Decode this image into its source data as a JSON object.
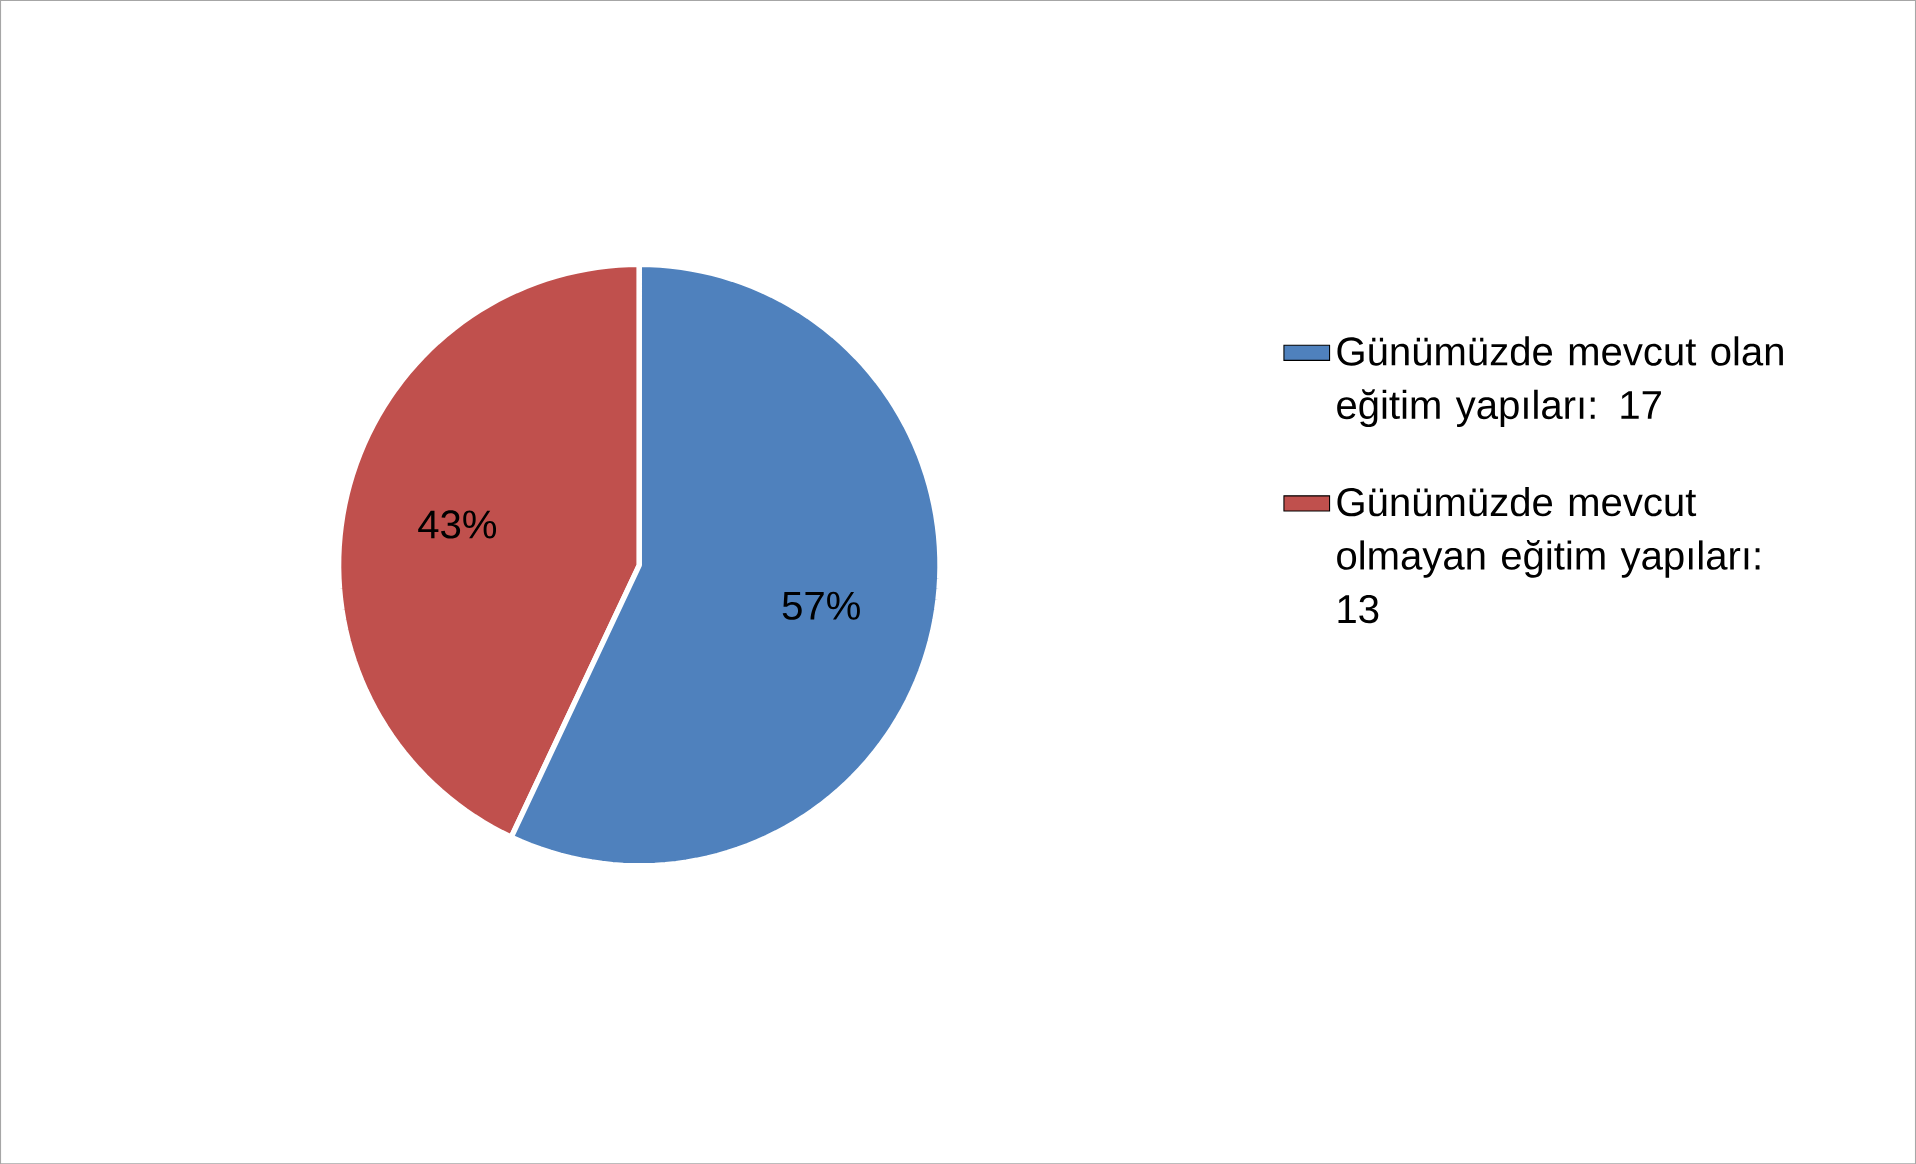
{
  "chart_data": {
    "type": "pie",
    "categories": [
      "Günümüzde mevcut olan eğitim yapıları: 17",
      "Günümüzde mevcut olmayan eğitim yapıları: 13"
    ],
    "values": [
      57,
      43
    ],
    "colors": [
      "#4f81bd",
      "#c0504d"
    ],
    "value_labels": [
      "57%",
      "43%"
    ],
    "legend": "right"
  }
}
